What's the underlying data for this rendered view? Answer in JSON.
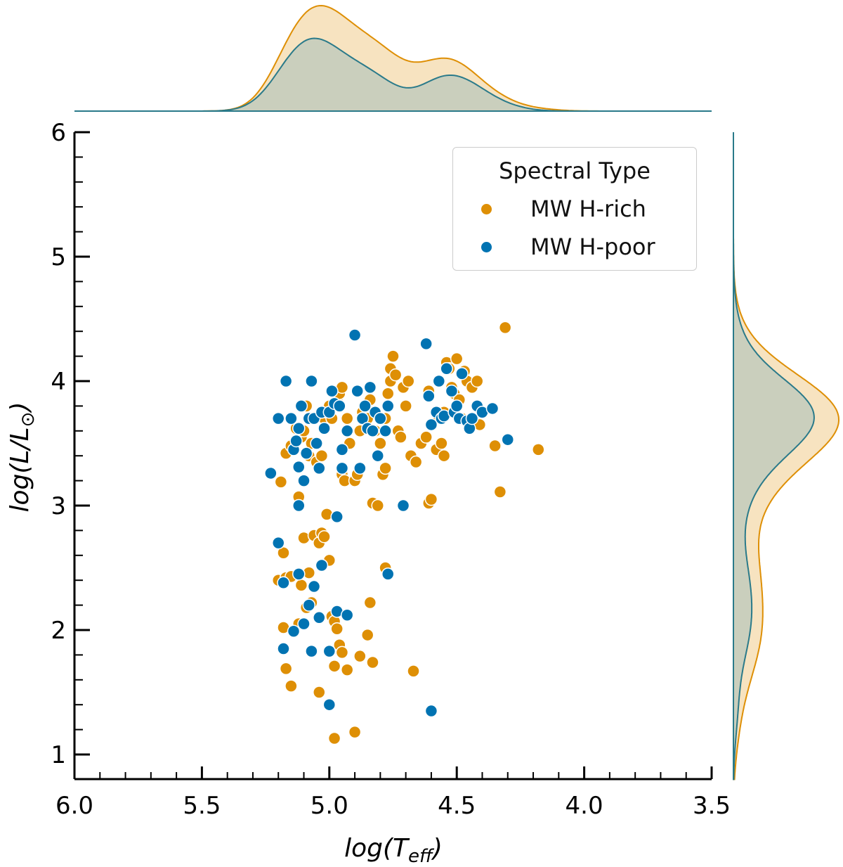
{
  "chart_data": {
    "type": "scatter",
    "xlabel": "log(T_eff)",
    "ylabel": "log(L/L_⊙)",
    "xlim": [
      6.0,
      3.5
    ],
    "ylim": [
      1.0,
      6.0
    ],
    "x_ticks": [
      "6.0",
      "5.5",
      "5.0",
      "4.5",
      "4.0",
      "3.5"
    ],
    "x_tick_values": [
      6.0,
      5.5,
      5.0,
      4.5,
      4.0,
      3.5
    ],
    "y_ticks": [
      "1",
      "2",
      "3",
      "4",
      "5",
      "6"
    ],
    "y_tick_values": [
      1,
      2,
      3,
      4,
      5,
      6
    ],
    "legend": {
      "title": "Spectral Type",
      "position": "top-right",
      "entries": [
        "MW H-rich",
        "MW H-poor"
      ]
    },
    "marginal_x": "kde",
    "marginal_y": "kde",
    "series": [
      {
        "name": "MW H-rich",
        "color": "#de8f05",
        "points": [
          [
            5.19,
            3.19
          ],
          [
            5.17,
            3.42
          ],
          [
            5.15,
            3.48
          ],
          [
            5.13,
            3.62
          ],
          [
            5.12,
            3.07
          ],
          [
            5.11,
            3.55
          ],
          [
            5.1,
            3.6
          ],
          [
            5.09,
            3.8
          ],
          [
            5.08,
            3.4
          ],
          [
            5.07,
            3.5
          ],
          [
            5.05,
            3.35
          ],
          [
            5.04,
            3.3
          ],
          [
            5.03,
            3.4
          ],
          [
            5.02,
            3.7
          ],
          [
            5.01,
            3.75
          ],
          [
            5.0,
            3.8
          ],
          [
            4.99,
            3.7
          ],
          [
            4.97,
            3.85
          ],
          [
            4.96,
            3.9
          ],
          [
            4.95,
            3.95
          ],
          [
            4.95,
            3.25
          ],
          [
            4.94,
            3.2
          ],
          [
            4.93,
            3.7
          ],
          [
            4.92,
            3.5
          ],
          [
            4.9,
            3.2
          ],
          [
            4.89,
            3.25
          ],
          [
            4.88,
            3.6
          ],
          [
            4.87,
            3.75
          ],
          [
            4.86,
            3.8
          ],
          [
            4.85,
            3.7
          ],
          [
            4.84,
            3.85
          ],
          [
            4.83,
            3.02
          ],
          [
            4.82,
            3.6
          ],
          [
            4.81,
            3.0
          ],
          [
            4.8,
            3.5
          ],
          [
            4.79,
            3.25
          ],
          [
            4.78,
            3.3
          ],
          [
            4.78,
            3.7
          ],
          [
            4.77,
            3.9
          ],
          [
            4.76,
            4.0
          ],
          [
            4.76,
            4.1
          ],
          [
            4.75,
            4.2
          ],
          [
            4.74,
            4.05
          ],
          [
            4.73,
            3.6
          ],
          [
            4.72,
            3.55
          ],
          [
            4.71,
            3.95
          ],
          [
            4.7,
            3.8
          ],
          [
            4.69,
            4.0
          ],
          [
            4.68,
            3.4
          ],
          [
            4.66,
            3.35
          ],
          [
            4.64,
            3.5
          ],
          [
            4.62,
            3.55
          ],
          [
            4.61,
            3.92
          ],
          [
            4.61,
            3.02
          ],
          [
            4.6,
            3.05
          ],
          [
            4.58,
            3.45
          ],
          [
            4.57,
            3.7
          ],
          [
            4.56,
            3.5
          ],
          [
            4.55,
            3.75
          ],
          [
            4.55,
            3.4
          ],
          [
            4.54,
            4.15
          ],
          [
            4.53,
            4.1
          ],
          [
            4.52,
            3.95
          ],
          [
            4.51,
            3.9
          ],
          [
            4.5,
            4.18
          ],
          [
            4.49,
            3.85
          ],
          [
            4.48,
            3.7
          ],
          [
            4.47,
            4.08
          ],
          [
            4.46,
            4.0
          ],
          [
            4.44,
            3.95
          ],
          [
            4.42,
            4.0
          ],
          [
            4.41,
            3.65
          ],
          [
            4.35,
            3.48
          ],
          [
            4.33,
            3.11
          ],
          [
            4.31,
            4.43
          ],
          [
            4.18,
            3.45
          ],
          [
            5.2,
            2.4
          ],
          [
            5.18,
            2.62
          ],
          [
            5.17,
            2.42
          ],
          [
            5.15,
            2.43
          ],
          [
            5.12,
            2.05
          ],
          [
            5.11,
            2.36
          ],
          [
            5.1,
            2.74
          ],
          [
            5.09,
            2.18
          ],
          [
            5.08,
            2.46
          ],
          [
            5.07,
            2.22
          ],
          [
            5.06,
            2.76
          ],
          [
            5.04,
            2.7
          ],
          [
            5.03,
            2.78
          ],
          [
            5.02,
            2.75
          ],
          [
            5.01,
            2.93
          ],
          [
            5.0,
            2.56
          ],
          [
            4.99,
            2.11
          ],
          [
            4.98,
            2.07
          ],
          [
            4.97,
            2.01
          ],
          [
            4.96,
            1.88
          ],
          [
            4.95,
            1.82
          ],
          [
            4.93,
            1.68
          ],
          [
            4.88,
            1.79
          ],
          [
            4.85,
            1.96
          ],
          [
            4.84,
            2.22
          ],
          [
            4.83,
            1.74
          ],
          [
            4.78,
            2.5
          ],
          [
            4.67,
            1.67
          ],
          [
            5.18,
            2.02
          ],
          [
            5.17,
            1.69
          ],
          [
            5.15,
            1.55
          ],
          [
            5.04,
            1.5
          ],
          [
            4.98,
            1.13
          ],
          [
            4.9,
            1.18
          ],
          [
            4.98,
            1.71
          ]
        ]
      },
      {
        "name": "MW H-poor",
        "color": "#0173b2",
        "points": [
          [
            5.23,
            3.26
          ],
          [
            5.2,
            3.7
          ],
          [
            5.15,
            3.7
          ],
          [
            5.14,
            3.45
          ],
          [
            5.13,
            3.52
          ],
          [
            5.12,
            3.31
          ],
          [
            5.12,
            3.0
          ],
          [
            5.11,
            3.8
          ],
          [
            5.1,
            3.2
          ],
          [
            5.09,
            3.42
          ],
          [
            5.08,
            3.7
          ],
          [
            5.07,
            4.0
          ],
          [
            5.06,
            3.7
          ],
          [
            5.05,
            3.5
          ],
          [
            5.04,
            3.3
          ],
          [
            5.03,
            3.75
          ],
          [
            5.02,
            3.62
          ],
          [
            5.0,
            3.75
          ],
          [
            4.99,
            3.92
          ],
          [
            4.98,
            3.82
          ],
          [
            4.97,
            2.91
          ],
          [
            4.96,
            3.8
          ],
          [
            4.95,
            3.45
          ],
          [
            4.95,
            3.3
          ],
          [
            4.93,
            3.6
          ],
          [
            4.9,
            4.37
          ],
          [
            4.89,
            3.92
          ],
          [
            4.88,
            3.3
          ],
          [
            4.87,
            3.7
          ],
          [
            4.86,
            3.8
          ],
          [
            4.85,
            3.62
          ],
          [
            4.84,
            3.95
          ],
          [
            4.83,
            3.6
          ],
          [
            4.82,
            3.75
          ],
          [
            4.81,
            3.4
          ],
          [
            4.8,
            3.7
          ],
          [
            4.78,
            3.6
          ],
          [
            4.77,
            3.8
          ],
          [
            4.71,
            3.0
          ],
          [
            4.62,
            4.3
          ],
          [
            4.61,
            3.88
          ],
          [
            4.6,
            3.65
          ],
          [
            4.58,
            3.75
          ],
          [
            4.57,
            4.0
          ],
          [
            4.56,
            3.7
          ],
          [
            4.55,
            3.72
          ],
          [
            4.54,
            4.1
          ],
          [
            4.52,
            3.92
          ],
          [
            4.51,
            3.75
          ],
          [
            4.5,
            3.8
          ],
          [
            4.49,
            3.7
          ],
          [
            4.48,
            4.06
          ],
          [
            4.46,
            3.68
          ],
          [
            4.45,
            3.62
          ],
          [
            4.44,
            3.7
          ],
          [
            4.42,
            3.8
          ],
          [
            4.4,
            3.75
          ],
          [
            4.36,
            3.78
          ],
          [
            4.3,
            3.53
          ],
          [
            5.17,
            4.0
          ],
          [
            5.12,
            3.62
          ],
          [
            5.2,
            2.7
          ],
          [
            5.18,
            2.38
          ],
          [
            5.14,
            1.99
          ],
          [
            5.12,
            2.45
          ],
          [
            5.1,
            2.05
          ],
          [
            5.08,
            2.2
          ],
          [
            5.06,
            2.35
          ],
          [
            5.04,
            2.1
          ],
          [
            5.03,
            2.52
          ],
          [
            5.0,
            1.83
          ],
          [
            4.97,
            2.15
          ],
          [
            4.93,
            2.12
          ],
          [
            4.77,
            2.45
          ],
          [
            5.18,
            1.85
          ],
          [
            5.07,
            1.83
          ],
          [
            5.0,
            1.4
          ],
          [
            4.6,
            1.35
          ]
        ]
      }
    ]
  },
  "legend_title": "Spectral Type",
  "legend_rich": "MW H-rich",
  "legend_poor": "MW H-poor"
}
